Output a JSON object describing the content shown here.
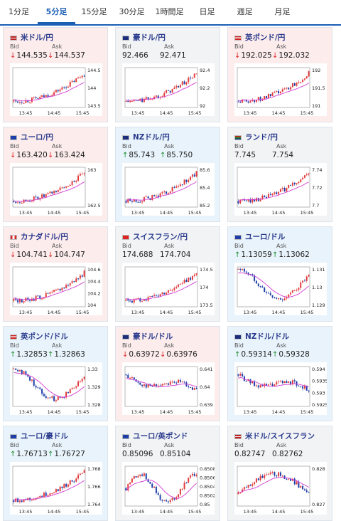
{
  "tabs": [
    "1分足",
    "5分足",
    "15分足",
    "30分足",
    "1時間足",
    "日足",
    "週足",
    "月足"
  ],
  "active_tab": 1,
  "labels": {
    "bid": "Bid",
    "ask": "Ask"
  },
  "x_ticks": [
    "13:45",
    "14:45",
    "15:45"
  ],
  "cards": [
    {
      "pair": "米ドル/円",
      "dir": "down",
      "bid": "144.535",
      "ask": "144.537",
      "flag": "us",
      "yticks": [
        "144.5",
        "144",
        "143.5"
      ],
      "trend": "up"
    },
    {
      "pair": "豪ドル/円",
      "dir": "flat",
      "bid": "92.466",
      "ask": "92.471",
      "flag": "au",
      "yticks": [
        "92.4",
        "92.2",
        "92"
      ],
      "trend": "up"
    },
    {
      "pair": "英ポンド/円",
      "dir": "down",
      "bid": "192.025",
      "ask": "192.032",
      "flag": "gb",
      "yticks": [
        "192",
        "191.5",
        "191"
      ],
      "trend": "up"
    },
    {
      "pair": "ユーロ/円",
      "dir": "down",
      "bid": "163.420",
      "ask": "163.424",
      "flag": "eu",
      "yticks": [
        "163",
        "162.5"
      ],
      "trend": "up"
    },
    {
      "pair": "NZドル/円",
      "dir": "up",
      "bid": "85.743",
      "ask": "85.750",
      "flag": "nz",
      "yticks": [
        "85.6",
        "85.4",
        "85.2"
      ],
      "trend": "up"
    },
    {
      "pair": "ランド/円",
      "dir": "flat",
      "bid": "7.745",
      "ask": "7.754",
      "flag": "za",
      "yticks": [
        "7.74",
        "7.72",
        "7.7"
      ],
      "trend": "up"
    },
    {
      "pair": "カナダドル/円",
      "dir": "down",
      "bid": "104.741",
      "ask": "104.747",
      "flag": "ca",
      "yticks": [
        "104.6",
        "104.4",
        "104.2",
        "104"
      ],
      "trend": "up"
    },
    {
      "pair": "スイスフラン/円",
      "dir": "flat",
      "bid": "174.688",
      "ask": "174.704",
      "flag": "ch",
      "yticks": [
        "174.5",
        "174",
        "173.5"
      ],
      "trend": "up"
    },
    {
      "pair": "ユーロ/ドル",
      "dir": "up",
      "bid": "1.13059",
      "ask": "1.13062",
      "flag": "eu",
      "yticks": [
        "1.131",
        "1.13",
        "1.129"
      ],
      "trend": "vdip"
    },
    {
      "pair": "英ポンド/ドル",
      "dir": "up",
      "bid": "1.32853",
      "ask": "1.32863",
      "flag": "gb",
      "yticks": [
        "1.33",
        "1.329",
        "1.328"
      ],
      "trend": "vdip"
    },
    {
      "pair": "豪ドル/ドル",
      "dir": "down",
      "bid": "0.63972",
      "ask": "0.63976",
      "flag": "au",
      "yticks": [
        "0.641",
        "0.64",
        "0.639"
      ],
      "trend": "down"
    },
    {
      "pair": "NZドル/ドル",
      "dir": "up",
      "bid": "0.59314",
      "ask": "0.59328",
      "flag": "nz",
      "yticks": [
        "0.594",
        "0.5935",
        "0.593",
        "0.5925"
      ],
      "trend": "down"
    },
    {
      "pair": "ユーロ/豪ドル",
      "dir": "up",
      "bid": "1.76713",
      "ask": "1.76727",
      "flag": "eu",
      "yticks": [
        "1.768",
        "1.766",
        "1.764"
      ],
      "trend": "up"
    },
    {
      "pair": "ユーロ/英ポンド",
      "dir": "flat",
      "bid": "0.85096",
      "ask": "0.85104",
      "flag": "eu",
      "yticks": [
        "0.8508",
        "0.8506",
        "0.8504",
        "0.8502",
        "0.85"
      ],
      "trend": "wave"
    },
    {
      "pair": "米ドル/スイスフラン",
      "dir": "flat",
      "bid": "0.82747",
      "ask": "0.82762",
      "flag": "us",
      "yticks": [
        "0.828",
        "0.827"
      ],
      "trend": "hump"
    }
  ],
  "colors": {
    "candle_up": "#e23b3b",
    "candle_down": "#1f3fa8",
    "ma": "#d23ad2",
    "accent": "#1a5fb4"
  }
}
